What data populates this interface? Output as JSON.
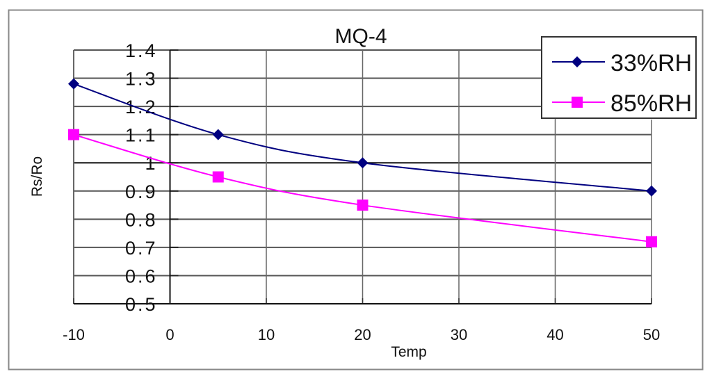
{
  "chart_data": {
    "type": "line",
    "title": "MQ-4",
    "xlabel": "Temp",
    "ylabel": "Rs/Ro",
    "xlim": [
      -10,
      50
    ],
    "ylim": [
      0.5,
      1.4
    ],
    "xticks": [
      "-10",
      "0",
      "10",
      "20",
      "30",
      "40",
      "50"
    ],
    "yticks": [
      "0.5",
      "0.6",
      "0.7",
      "0.8",
      "0.9",
      "1",
      "1.1",
      "1.2",
      "1.3",
      "1.4"
    ],
    "grid": true,
    "smooth": true,
    "legend_position": "top-right",
    "series": [
      {
        "name": "33%RH",
        "color": "#000080",
        "marker": "diamond",
        "x": [
          -10,
          5,
          20,
          50
        ],
        "values": [
          1.28,
          1.1,
          1.0,
          0.9
        ]
      },
      {
        "name": "85%RH",
        "color": "#ff00ff",
        "marker": "square",
        "x": [
          -10,
          5,
          20,
          50
        ],
        "values": [
          1.1,
          0.95,
          0.85,
          0.72
        ]
      }
    ]
  }
}
